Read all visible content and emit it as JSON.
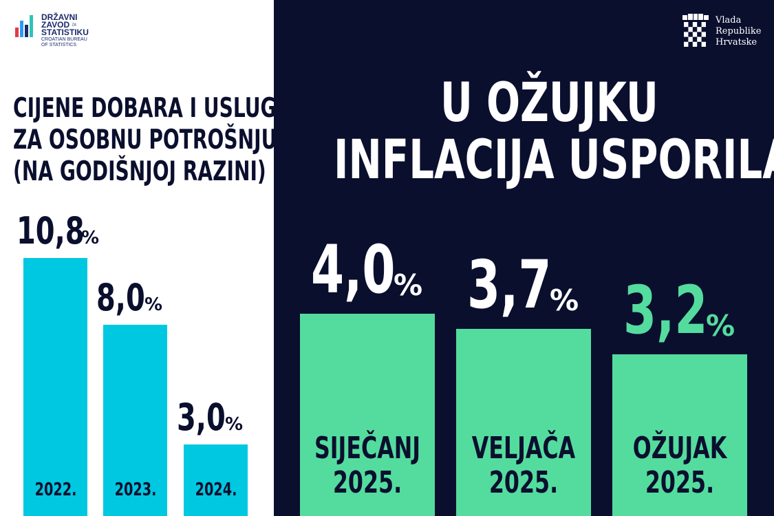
{
  "logos": {
    "dzs_lines": [
      "DRŽAVNI",
      "ZAVOD",
      "STATISTIKU"
    ],
    "dzs_za": "ZA",
    "dzs_sub": [
      "CROATIAN BUREAU",
      "OF STATISTICS"
    ],
    "vlada_lines": [
      "Vlada",
      "Republike",
      "Hrvatske"
    ]
  },
  "chart_data": [
    {
      "type": "bar",
      "title": [
        "CIJENE DOBARA I USLUGA",
        "ZA OSOBNU POTROŠNJU",
        "(NA GODIŠNJOJ RAZINI)"
      ],
      "categories": [
        "2022.",
        "2023.",
        "2024."
      ],
      "values": [
        10.8,
        8.0,
        3.0
      ],
      "value_labels": [
        "10,8",
        "8,0",
        "3,0"
      ],
      "unit": "%",
      "bar_color": "#00c8e0"
    },
    {
      "type": "bar",
      "title": [
        "U OŽUJKU",
        "INFLACIJA USPORILA"
      ],
      "categories": [
        [
          "SIJEČANJ",
          "2025."
        ],
        [
          "VELJAČA",
          "2025."
        ],
        [
          "OŽUJAK",
          "2025."
        ]
      ],
      "values": [
        4.0,
        3.7,
        3.2
      ],
      "value_labels": [
        "4,0",
        "3,7",
        "3,2"
      ],
      "unit": "%",
      "bar_color": "#54dc9e",
      "highlight_color": "#54dc9e"
    }
  ],
  "colors": {
    "navy": "#0b0f2e",
    "white": "#ffffff"
  }
}
